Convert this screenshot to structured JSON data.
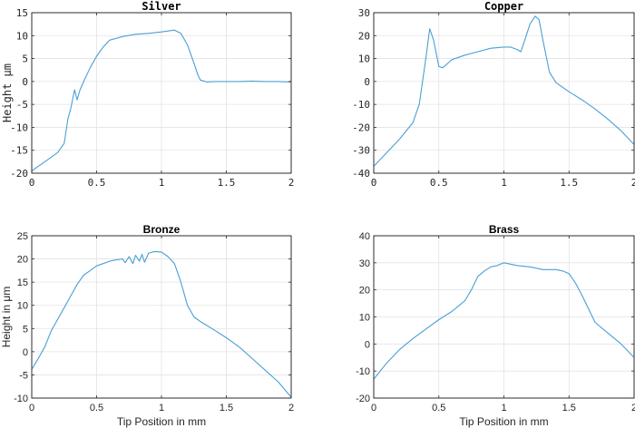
{
  "chart_data": [
    {
      "type": "line",
      "title": "Silver",
      "xlabel": "",
      "ylabel": "Height μm",
      "xlim": [
        0,
        2
      ],
      "ylim": [
        -20,
        15
      ],
      "xticks": [
        "0",
        "0.5",
        "1",
        "1.5",
        "2"
      ],
      "yticks": [
        "-20",
        "-15",
        "-10",
        "-5",
        "0",
        "5",
        "10",
        "15"
      ],
      "grid": true,
      "series": [
        {
          "x": [
            0,
            0.05,
            0.1,
            0.15,
            0.2,
            0.25,
            0.28,
            0.3,
            0.33,
            0.35,
            0.37,
            0.4,
            0.45,
            0.5,
            0.55,
            0.6,
            0.7,
            0.8,
            0.9,
            1.0,
            1.1,
            1.15,
            1.2,
            1.25,
            1.28,
            1.3,
            1.35,
            1.4,
            1.5,
            1.6,
            1.7,
            1.8,
            1.9,
            2.0
          ],
          "y": [
            -19.5,
            -18.5,
            -17.5,
            -16.5,
            -15.5,
            -13.5,
            -8,
            -6,
            -1.8,
            -4,
            -2,
            0,
            3,
            5.5,
            7.5,
            9,
            9.8,
            10.3,
            10.5,
            10.8,
            11.2,
            10.5,
            8,
            4,
            1.5,
            0.3,
            -0.1,
            0,
            0,
            0,
            0.1,
            0,
            0,
            -0.1
          ]
        }
      ]
    },
    {
      "type": "line",
      "title": "Copper",
      "xlabel": "",
      "ylabel": "",
      "xlim": [
        0,
        2
      ],
      "ylim": [
        -40,
        30
      ],
      "xticks": [
        "0",
        "0.5",
        "1",
        "1.5",
        "2"
      ],
      "yticks": [
        "-40",
        "-30",
        "-20",
        "-10",
        "0",
        "10",
        "20",
        "30"
      ],
      "grid": true,
      "series": [
        {
          "x": [
            0,
            0.1,
            0.2,
            0.3,
            0.35,
            0.4,
            0.43,
            0.46,
            0.5,
            0.53,
            0.57,
            0.6,
            0.7,
            0.8,
            0.9,
            1.0,
            1.05,
            1.1,
            1.13,
            1.16,
            1.2,
            1.24,
            1.27,
            1.3,
            1.35,
            1.4,
            1.45,
            1.5,
            1.6,
            1.7,
            1.8,
            1.9,
            2.0
          ],
          "y": [
            -37,
            -31,
            -25,
            -18,
            -10,
            10,
            23,
            18,
            6.5,
            6,
            8,
            9.5,
            11.5,
            13,
            14.5,
            15,
            15,
            14,
            13,
            18,
            25,
            28.5,
            27,
            18,
            4,
            -0.5,
            -2.5,
            -4.5,
            -8,
            -12,
            -16.5,
            -21.5,
            -27.5
          ]
        }
      ]
    },
    {
      "type": "line",
      "title": "Bronze",
      "xlabel": "Tip Position in mm",
      "ylabel": "Height in μm",
      "xlim": [
        0,
        2
      ],
      "ylim": [
        -10,
        25
      ],
      "xticks": [
        "0",
        "0.5",
        "1",
        "1.5",
        "2"
      ],
      "yticks": [
        "-10",
        "-5",
        "0",
        "5",
        "10",
        "15",
        "20",
        "25"
      ],
      "grid": true,
      "series": [
        {
          "x": [
            0,
            0.05,
            0.1,
            0.15,
            0.2,
            0.25,
            0.3,
            0.35,
            0.4,
            0.45,
            0.5,
            0.55,
            0.6,
            0.65,
            0.7,
            0.72,
            0.75,
            0.78,
            0.8,
            0.83,
            0.85,
            0.87,
            0.9,
            0.93,
            0.95,
            1.0,
            1.05,
            1.1,
            1.15,
            1.2,
            1.25,
            1.3,
            1.4,
            1.5,
            1.6,
            1.7,
            1.8,
            1.9,
            2.0
          ],
          "y": [
            -3.8,
            -1.5,
            1,
            4.5,
            7,
            9.5,
            12,
            14.5,
            16.5,
            17.5,
            18.5,
            19,
            19.5,
            19.8,
            20,
            19.2,
            20.5,
            19,
            20.8,
            19.5,
            21,
            19.3,
            21.2,
            21.5,
            21.6,
            21.5,
            20.5,
            19,
            15,
            10,
            7.5,
            6.5,
            4.8,
            3,
            1,
            -1.5,
            -4,
            -6.5,
            -9.8
          ]
        }
      ]
    },
    {
      "type": "line",
      "title": "Brass",
      "xlabel": "Tip Position in mm",
      "ylabel": "",
      "xlim": [
        0,
        2
      ],
      "ylim": [
        -20,
        40
      ],
      "xticks": [
        "0",
        "0.5",
        "1",
        "1.5",
        "2"
      ],
      "yticks": [
        "-20",
        "-10",
        "0",
        "10",
        "20",
        "30",
        "40"
      ],
      "grid": true,
      "series": [
        {
          "x": [
            0,
            0.1,
            0.2,
            0.3,
            0.4,
            0.5,
            0.6,
            0.7,
            0.75,
            0.8,
            0.85,
            0.9,
            0.95,
            1.0,
            1.05,
            1.1,
            1.2,
            1.3,
            1.4,
            1.45,
            1.5,
            1.55,
            1.6,
            1.65,
            1.7,
            1.8,
            1.9,
            2.0
          ],
          "y": [
            -13,
            -7,
            -2,
            2,
            5.5,
            9,
            12,
            16,
            20,
            25,
            27,
            28.5,
            29,
            30,
            29.5,
            29,
            28.5,
            27.5,
            27.5,
            27,
            26,
            22.5,
            18,
            13,
            8,
            4,
            0,
            -5
          ]
        }
      ]
    }
  ]
}
